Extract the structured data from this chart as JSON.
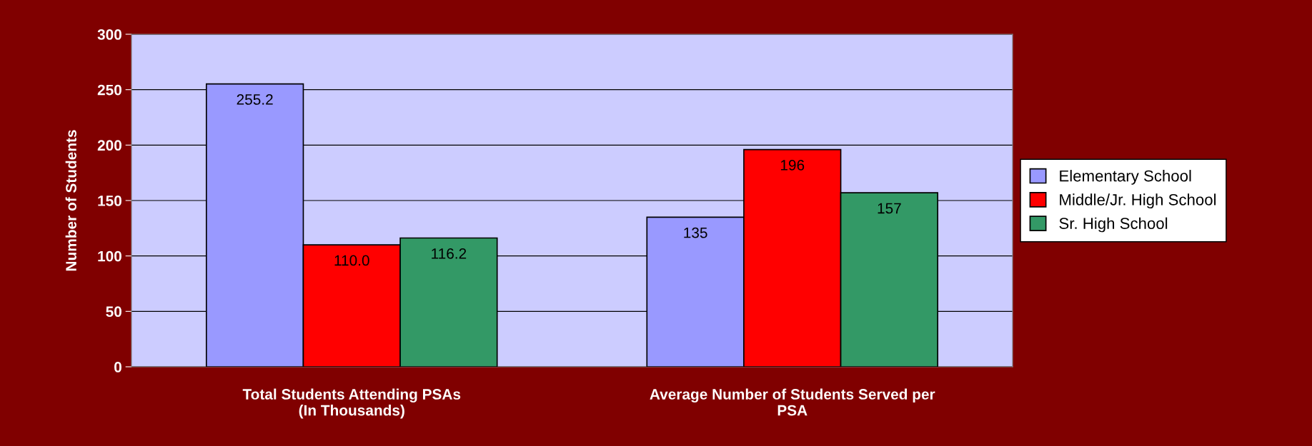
{
  "chart_data": {
    "type": "bar",
    "ylabel": "Number of Students",
    "categories": [
      "Total Students Attending PSAs\n(In Thousands)",
      "Average Number of Students Served per\nPSA"
    ],
    "series": [
      {
        "name": "Elementary School",
        "color": "#9999ff",
        "values": [
          255.2,
          135
        ],
        "value_labels": [
          "255.2",
          "135"
        ]
      },
      {
        "name": "Middle/Jr. High School",
        "color": "#ff0000",
        "values": [
          110.0,
          196
        ],
        "value_labels": [
          "110.0",
          "196"
        ]
      },
      {
        "name": "Sr. High School",
        "color": "#339966",
        "values": [
          116.2,
          157
        ],
        "value_labels": [
          "116.2",
          "157"
        ]
      }
    ],
    "ylim": [
      0,
      300
    ],
    "yticks": [
      0,
      50,
      100,
      150,
      200,
      250,
      300
    ],
    "grid": "y",
    "legend": "right"
  }
}
